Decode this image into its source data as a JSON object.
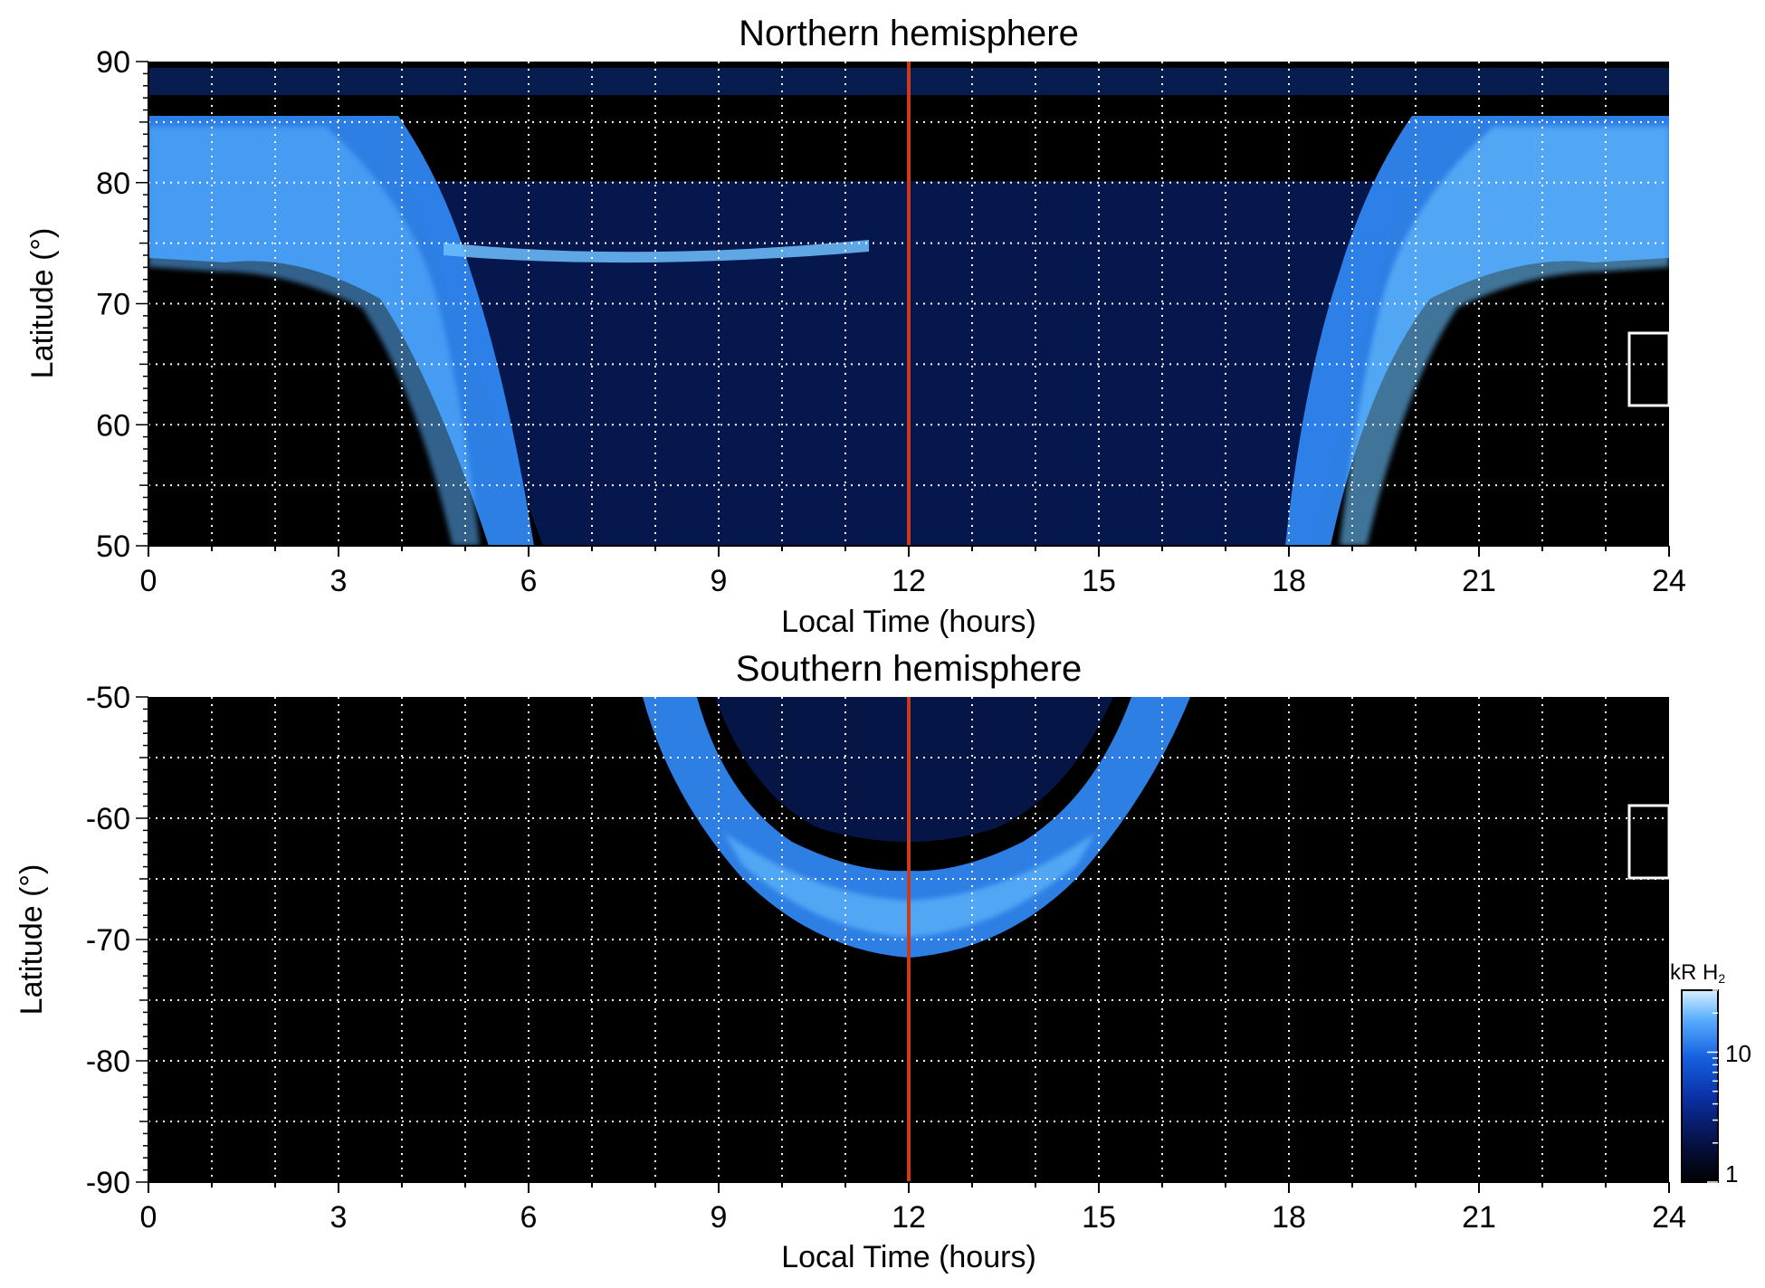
{
  "chart_data": [
    {
      "type": "heatmap",
      "title": "Northern hemisphere",
      "xlabel": "Local Time (hours)",
      "ylabel": "Latitude (°)",
      "xlim": [
        0,
        24
      ],
      "ylim": [
        50,
        90
      ],
      "x_ticks": [
        "0",
        "3",
        "6",
        "9",
        "12",
        "15",
        "18",
        "21",
        "24"
      ],
      "y_ticks": [
        "50",
        "60",
        "70",
        "80",
        "90"
      ],
      "grid": true,
      "colormap": "blue",
      "reference_line": {
        "x": 12,
        "color": "#cc3a1e"
      },
      "features": [
        {
          "name": "dawn auroral oval",
          "from": {
            "x": 0,
            "y": 85
          },
          "to": {
            "x": 5.5,
            "y": 50
          }
        },
        {
          "name": "dusk auroral oval",
          "from": {
            "x": 19,
            "y": 50
          },
          "to": {
            "x": 24,
            "y": 85
          }
        },
        {
          "name": "dawn arc",
          "x_range": [
            4.5,
            11
          ],
          "y": 74.5
        }
      ],
      "marker_box": {
        "x_range": [
          23.4,
          24
        ],
        "y_range": [
          61.5,
          67.5
        ],
        "color": "#ffffff"
      }
    },
    {
      "type": "heatmap",
      "title": "Southern hemisphere",
      "xlabel": "Local Time (hours)",
      "ylabel": "Latitude (°)",
      "xlim": [
        0,
        24
      ],
      "ylim": [
        -90,
        -50
      ],
      "x_ticks": [
        "0",
        "3",
        "6",
        "9",
        "12",
        "15",
        "18",
        "21",
        "24"
      ],
      "y_ticks": [
        "-50",
        "-60",
        "-70",
        "-80",
        "-90"
      ],
      "grid": true,
      "colormap": "blue",
      "reference_line": {
        "x": 12,
        "color": "#cc3a1e"
      },
      "features": [
        {
          "name": "southern auroral oval",
          "x_range": [
            8,
            16.5
          ],
          "y_range": [
            -71,
            -50
          ]
        }
      ],
      "marker_box": {
        "x_range": [
          23.4,
          24
        ],
        "y_range": [
          -65,
          -59
        ]
      }
    }
  ],
  "colorbar": {
    "label_main": "kR H",
    "label_sub": "2",
    "ticks": [
      "10",
      "1"
    ],
    "scale": "log",
    "range": [
      1,
      30
    ]
  },
  "colors": {
    "plot_background": "#000000",
    "aurora_bright": "#4da6ff",
    "aurora_dim": "#1448b8",
    "grid": "#ffffff",
    "noon_line": "#cc3a1e"
  }
}
